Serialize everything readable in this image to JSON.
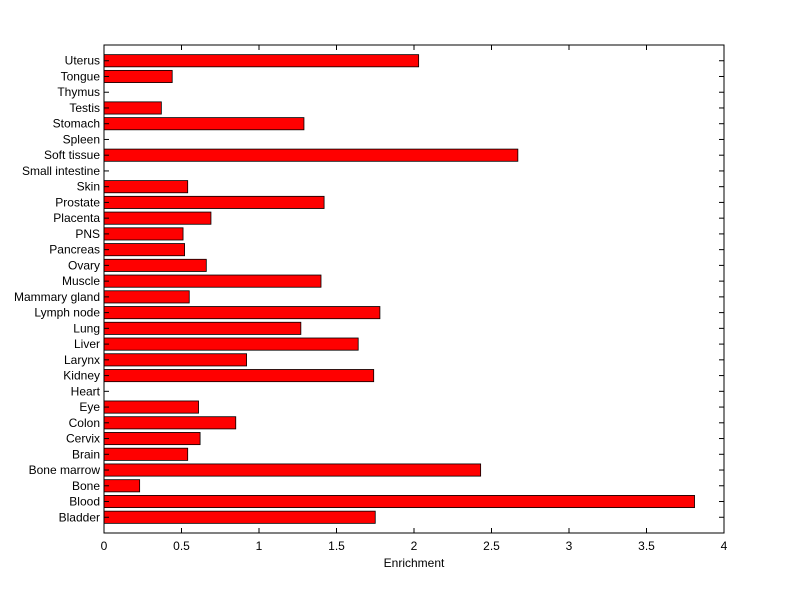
{
  "chart_data": {
    "type": "bar",
    "orientation": "horizontal",
    "title": "",
    "xlabel": "Enrichment",
    "ylabel": "",
    "xlim": [
      0,
      4
    ],
    "xticks": [
      "0",
      "0.5",
      "1",
      "1.5",
      "2",
      "2.5",
      "3",
      "3.5",
      "4"
    ],
    "grid": false,
    "bar_color": "#ff0000",
    "edge_color": "#000000",
    "categories": [
      "Bladder",
      "Blood",
      "Bone",
      "Bone marrow",
      "Brain",
      "Cervix",
      "Colon",
      "Eye",
      "Heart",
      "Kidney",
      "Larynx",
      "Liver",
      "Lung",
      "Lymph node",
      "Mammary gland",
      "Muscle",
      "Ovary",
      "Pancreas",
      "PNS",
      "Placenta",
      "Prostate",
      "Skin",
      "Small intestine",
      "Soft tissue",
      "Spleen",
      "Stomach",
      "Testis",
      "Thymus",
      "Tongue",
      "Uterus"
    ],
    "values": [
      1.75,
      3.81,
      0.23,
      2.43,
      0.54,
      0.62,
      0.85,
      0.61,
      0,
      1.74,
      0.92,
      1.64,
      1.27,
      1.78,
      0.55,
      1.4,
      0.66,
      0.52,
      0.51,
      0.69,
      1.42,
      0.54,
      0,
      2.67,
      0,
      1.29,
      0.37,
      0,
      0.44,
      2.03
    ]
  }
}
